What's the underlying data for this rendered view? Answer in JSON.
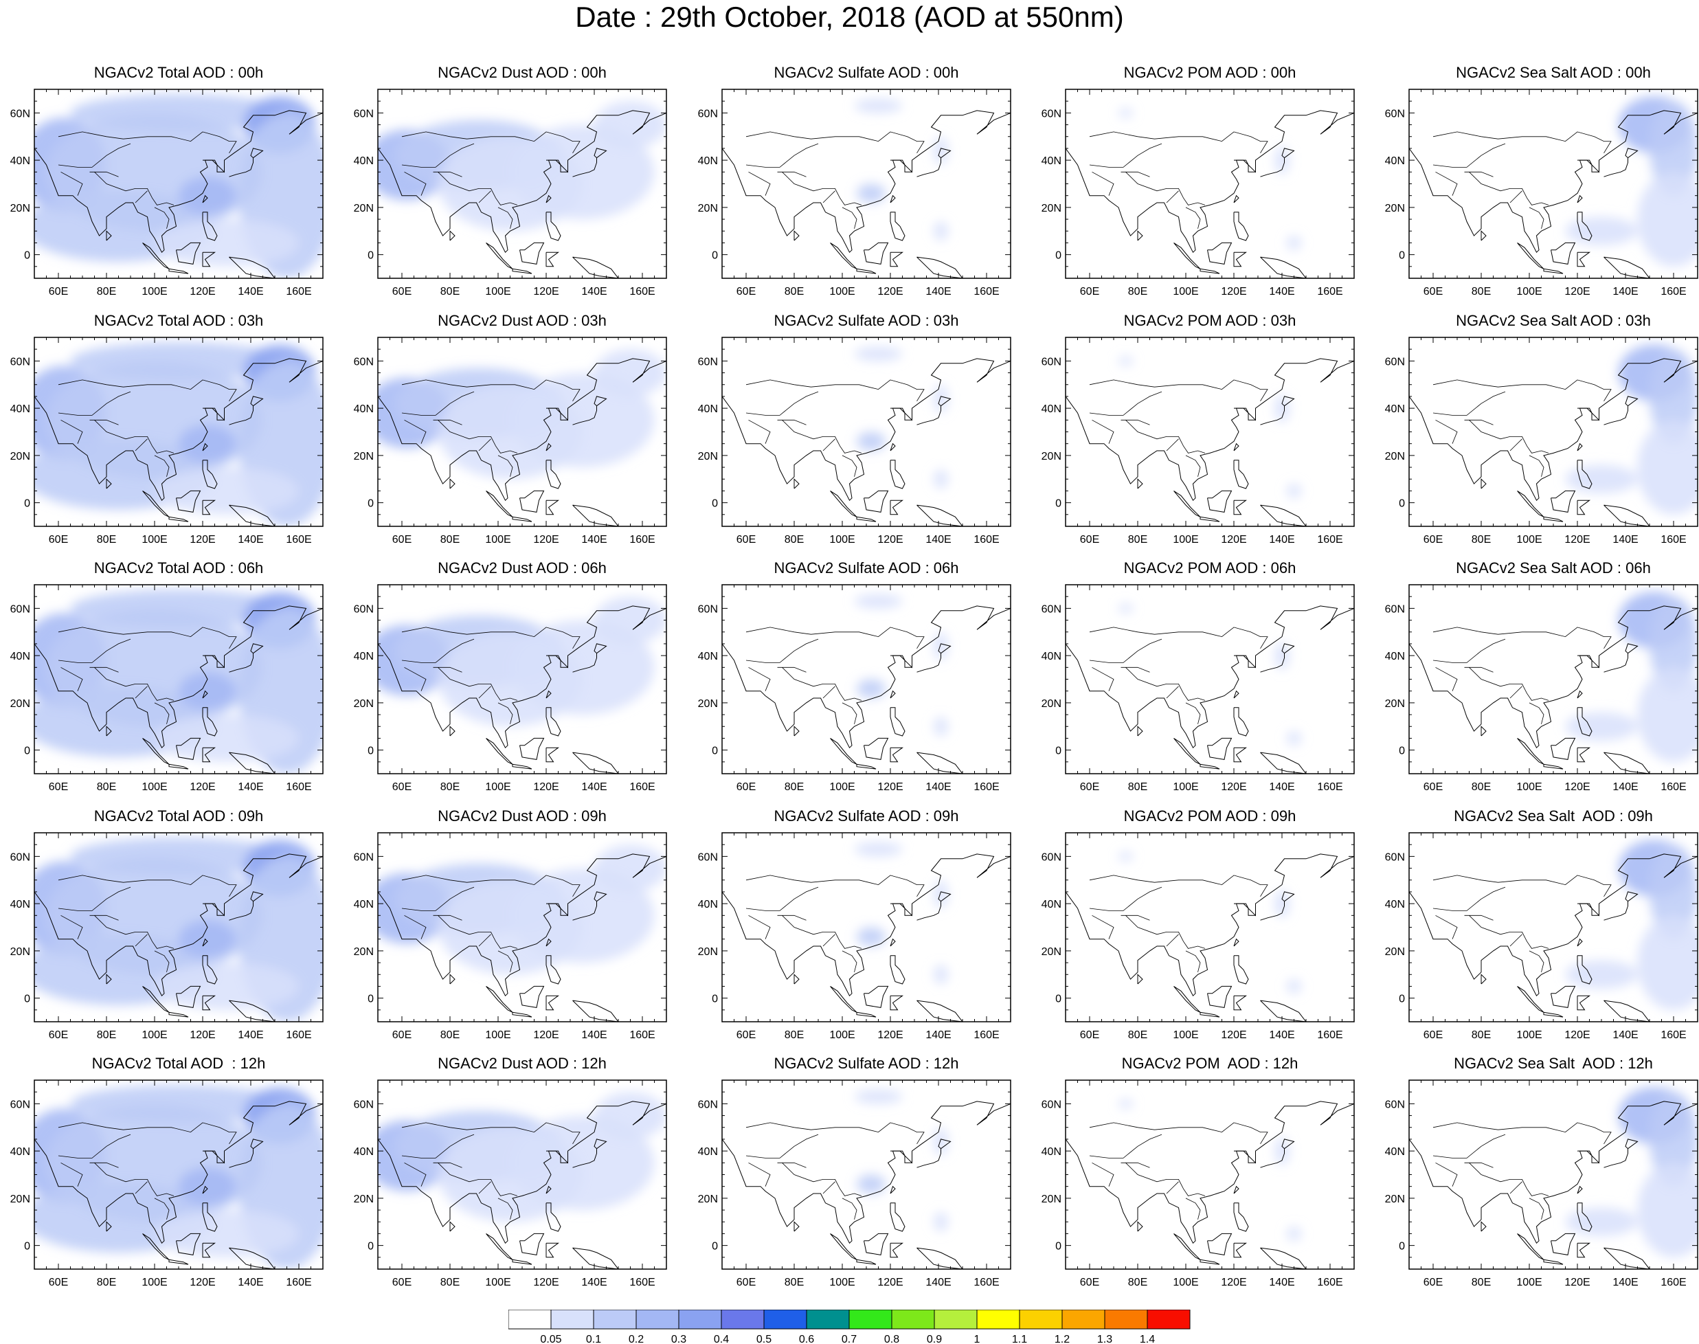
{
  "title": "Date : 29th October, 2018 (AOD at 550nm)",
  "axes": {
    "lat_labels": [
      "60N",
      "40N",
      "20N",
      "0"
    ],
    "lat_values": [
      60,
      40,
      20,
      0
    ],
    "lon_labels": [
      "60E",
      "80E",
      "100E",
      "120E",
      "140E",
      "160E"
    ],
    "lon_values": [
      60,
      80,
      100,
      120,
      140,
      160
    ],
    "lat_range": [
      -10,
      70
    ],
    "lon_range": [
      50,
      170
    ]
  },
  "colorbar": {
    "labels": [
      "0.05",
      "0.1",
      "0.2",
      "0.3",
      "0.4",
      "0.5",
      "0.6",
      "0.7",
      "0.8",
      "0.9",
      "1",
      "1.1",
      "1.2",
      "1.3",
      "1.4"
    ],
    "colors": [
      "#ffffff",
      "#d8e1fb",
      "#bccbf7",
      "#a3b7f4",
      "#8aa2f1",
      "#6a78ea",
      "#1f5fe8",
      "#00908f",
      "#33e81a",
      "#7de81a",
      "#b5ef3c",
      "#ffff00",
      "#fcd100",
      "#fba600",
      "#fa7a00",
      "#f80e00"
    ]
  },
  "grid": {
    "columns": [
      "Total",
      "Dust",
      "Sulfate",
      "POM",
      "Sea Salt"
    ],
    "times": [
      "00h",
      "03h",
      "06h",
      "09h",
      "12h"
    ],
    "titles": [
      [
        "NGACv2 Total AOD : 00h",
        "NGACv2 Dust AOD : 00h",
        "NGACv2 Sulfate AOD : 00h",
        "NGACv2 POM AOD : 00h",
        "NGACv2 Sea Salt AOD : 00h"
      ],
      [
        "NGACv2 Total AOD : 03h",
        "NGACv2 Dust AOD : 03h",
        "NGACv2 Sulfate AOD : 03h",
        "NGACv2 POM AOD : 03h",
        "NGACv2 Sea Salt AOD : 03h"
      ],
      [
        "NGACv2 Total AOD : 06h",
        "NGACv2 Dust AOD : 06h",
        "NGACv2 Sulfate AOD : 06h",
        "NGACv2 POM AOD : 06h",
        "NGACv2 Sea Salt AOD : 06h"
      ],
      [
        "NGACv2 Total AOD : 09h",
        "NGACv2 Dust AOD : 09h",
        "NGACv2 Sulfate AOD : 09h",
        "NGACv2 POM AOD : 09h",
        "NGACv2 Sea Salt  AOD : 09h"
      ],
      [
        "NGACv2 Total AOD  : 12h",
        "NGACv2 Dust AOD : 12h",
        "NGACv2 Sulfate AOD : 12h",
        "NGACv2 POM  AOD : 12h",
        "NGACv2 Sea Salt  AOD : 12h"
      ]
    ]
  },
  "fields": {
    "Total": [
      {
        "lon": 62,
        "lat": 38,
        "rx": 18,
        "ry": 20,
        "level": 3
      },
      {
        "lon": 100,
        "lat": 35,
        "rx": 45,
        "ry": 25,
        "level": 2
      },
      {
        "lon": 85,
        "lat": 12,
        "rx": 40,
        "ry": 15,
        "level": 2
      },
      {
        "lon": 110,
        "lat": 60,
        "rx": 45,
        "ry": 8,
        "level": 2
      },
      {
        "lon": 152,
        "lat": 55,
        "rx": 15,
        "ry": 12,
        "level": 4
      },
      {
        "lon": 155,
        "lat": 25,
        "rx": 20,
        "ry": 35,
        "level": 2
      },
      {
        "lon": 122,
        "lat": 25,
        "rx": 12,
        "ry": 8,
        "level": 3
      },
      {
        "lon": 130,
        "lat": 5,
        "rx": 30,
        "ry": 10,
        "level": 1
      }
    ],
    "Dust": [
      {
        "lon": 62,
        "lat": 38,
        "rx": 18,
        "ry": 15,
        "level": 3
      },
      {
        "lon": 92,
        "lat": 42,
        "rx": 35,
        "ry": 15,
        "level": 2
      },
      {
        "lon": 105,
        "lat": 30,
        "rx": 30,
        "ry": 20,
        "level": 1
      },
      {
        "lon": 135,
        "lat": 35,
        "rx": 30,
        "ry": 20,
        "level": 1
      },
      {
        "lon": 155,
        "lat": 55,
        "rx": 15,
        "ry": 10,
        "level": 1
      }
    ],
    "Sulfate": [
      {
        "lon": 112,
        "lat": 26,
        "rx": 6,
        "ry": 4,
        "level": 2
      },
      {
        "lon": 115,
        "lat": 63,
        "rx": 10,
        "ry": 3,
        "level": 1
      },
      {
        "lon": 141,
        "lat": 44,
        "rx": 3,
        "ry": 6,
        "level": 1
      },
      {
        "lon": 141,
        "lat": 10,
        "rx": 3,
        "ry": 4,
        "level": 1
      }
    ],
    "POM": [
      {
        "lon": 140,
        "lat": 40,
        "rx": 3,
        "ry": 6,
        "level": 1
      },
      {
        "lon": 145,
        "lat": 5,
        "rx": 3,
        "ry": 3,
        "level": 1
      },
      {
        "lon": 75,
        "lat": 60,
        "rx": 3,
        "ry": 2,
        "level": 1
      }
    ],
    "Sea Salt": [
      {
        "lon": 152,
        "lat": 55,
        "rx": 15,
        "ry": 12,
        "level": 3
      },
      {
        "lon": 160,
        "lat": 45,
        "rx": 10,
        "ry": 20,
        "level": 2
      },
      {
        "lon": 160,
        "lat": 15,
        "rx": 15,
        "ry": 20,
        "level": 1
      },
      {
        "lon": 130,
        "lat": 10,
        "rx": 15,
        "ry": 6,
        "level": 1
      }
    ]
  }
}
